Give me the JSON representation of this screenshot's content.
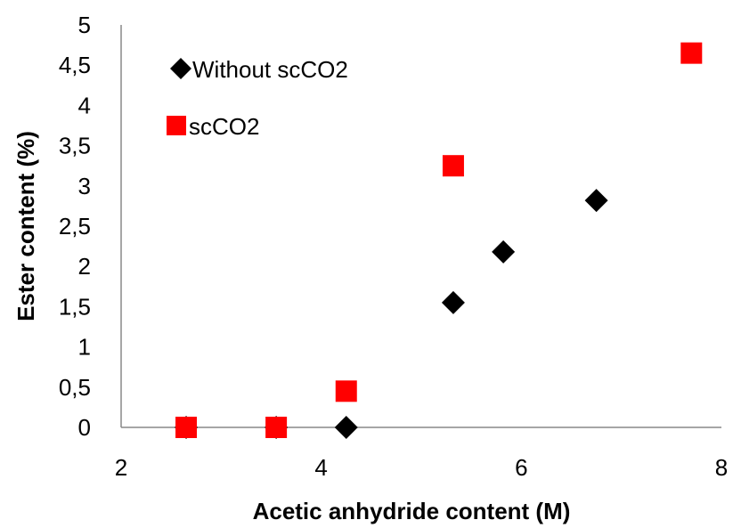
{
  "chart_data": {
    "type": "scatter",
    "xlabel": "Acetic anhydride  content (M)",
    "ylabel": "Ester content  (%)",
    "xlim": [
      2,
      8
    ],
    "ylim": [
      0,
      5
    ],
    "x_ticks": [
      "2",
      "4",
      "6",
      "8"
    ],
    "y_ticks": [
      "0",
      "0,5",
      "1",
      "1,5",
      "2",
      "2,5",
      "3",
      "3,5",
      "4",
      "4,5",
      "5"
    ],
    "grid": false,
    "legend_position": "top-left",
    "series": [
      {
        "name": "Without scCO2",
        "marker": "diamond",
        "color": "#000000",
        "x": [
          2.65,
          3.55,
          4.25,
          5.32,
          5.82,
          6.75
        ],
        "y": [
          0,
          0,
          0,
          1.55,
          2.18,
          2.82
        ]
      },
      {
        "name": "scCO2",
        "marker": "square",
        "color": "#ff0000",
        "x": [
          2.65,
          3.55,
          4.25,
          5.32,
          7.7
        ],
        "y": [
          0,
          0,
          0.45,
          3.25,
          4.65
        ]
      }
    ]
  }
}
